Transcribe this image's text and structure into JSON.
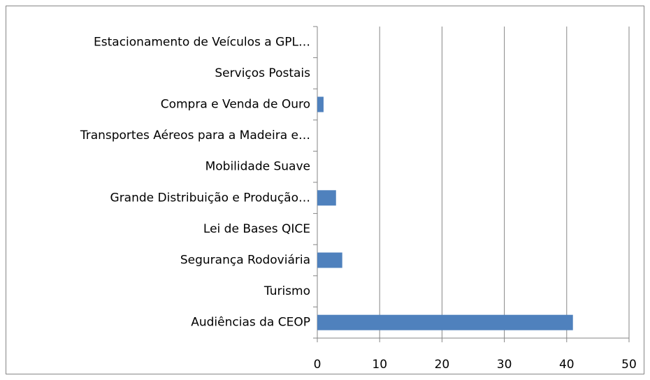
{
  "chart_data": {
    "type": "bar",
    "orientation": "horizontal",
    "categories": [
      "Estacionamento de Veículos a GPL…",
      "Serviços Postais",
      "Compra e Venda de Ouro",
      "Transportes Aéreos para a Madeira e…",
      "Mobilidade Suave",
      "Grande Distribuição e Produção…",
      "Lei de Bases QICE",
      "Segurança Rodoviária",
      "Turismo",
      "Audiências da CEOP"
    ],
    "values": [
      0,
      0,
      1,
      0,
      0,
      3,
      0,
      4,
      0,
      41
    ],
    "color": "#4f81bd",
    "xlim": [
      0,
      50
    ],
    "xticks": [
      0,
      10,
      20,
      30,
      40,
      50
    ],
    "grid": true
  }
}
